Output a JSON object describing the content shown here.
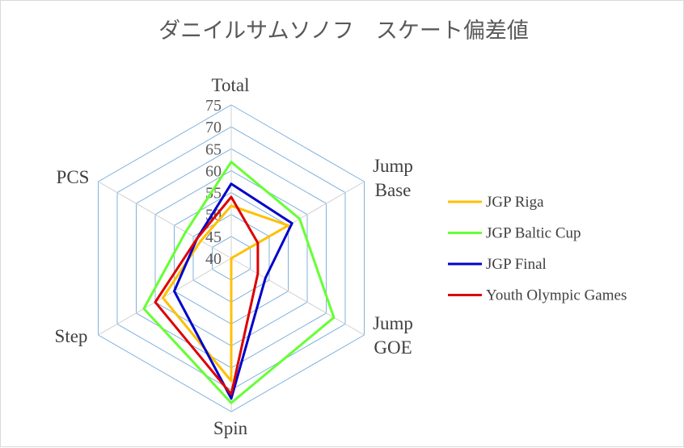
{
  "chart_data": {
    "type": "radar",
    "title": "ダニイルサムソノフ　スケート偏差値",
    "categories": [
      [
        "Total"
      ],
      [
        "Jump",
        "Base"
      ],
      [
        "Jump",
        "GOE"
      ],
      [
        "Spin"
      ],
      [
        "Step"
      ],
      [
        "PCS"
      ]
    ],
    "rlim": [
      40,
      75
    ],
    "ticks": [
      "40",
      "45",
      "50",
      "55",
      "60",
      "65",
      "70",
      "75"
    ],
    "grid": true,
    "legend_position": "right",
    "series": [
      {
        "name": "JGP Riga",
        "color": "#FFC000",
        "values": [
          52,
          55,
          40,
          68,
          58,
          48
        ]
      },
      {
        "name": "JGP Baltic Cup",
        "color": "#66FF33",
        "values": [
          62,
          58,
          67,
          73,
          63,
          52
        ]
      },
      {
        "name": "JGP Final",
        "color": "#0000CC",
        "values": [
          57,
          56,
          49,
          72,
          55,
          49
        ]
      },
      {
        "name": "Youth Olympic Games",
        "color": "#DD0000",
        "values": [
          54,
          47,
          47,
          71,
          60,
          49
        ]
      }
    ]
  }
}
